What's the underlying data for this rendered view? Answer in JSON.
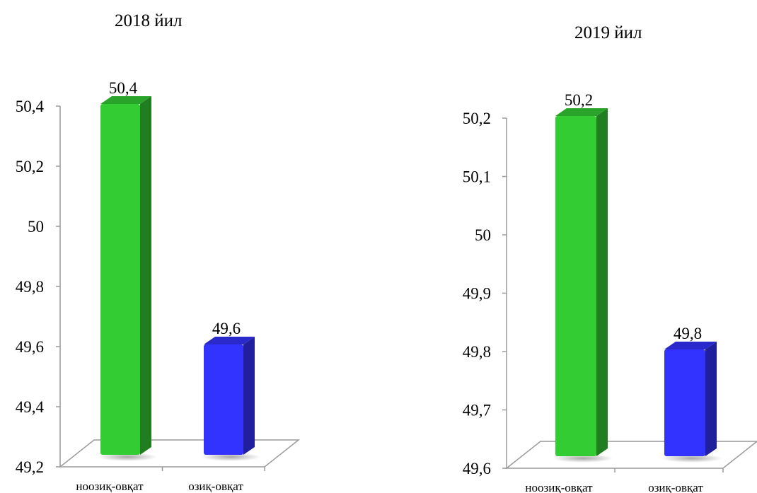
{
  "chart_data": [
    {
      "type": "bar",
      "title": "2018 йил",
      "categories": [
        "ноозиқ-овқат",
        "озиқ-овқат"
      ],
      "values": [
        50.4,
        49.6
      ],
      "data_labels": [
        "50,4",
        "49,6"
      ],
      "colors": [
        "#33cc33",
        "#3333ff"
      ],
      "ylim": [
        49.2,
        50.4
      ],
      "yticks": [
        49.2,
        49.4,
        49.6,
        49.8,
        50,
        50.2,
        50.4
      ],
      "ytick_labels": [
        "49,2",
        "49,4",
        "49,6",
        "49,8",
        "50",
        "50,2",
        "50,4"
      ],
      "grid": false,
      "legend": false
    },
    {
      "type": "bar",
      "title": "2019 йил",
      "categories": [
        "ноозиқ-овқат",
        "озиқ-овқат"
      ],
      "values": [
        50.2,
        49.8
      ],
      "data_labels": [
        "50,2",
        "49,8"
      ],
      "colors": [
        "#33cc33",
        "#3333ff"
      ],
      "ylim": [
        49.6,
        50.2
      ],
      "yticks": [
        49.6,
        49.7,
        49.8,
        49.9,
        50,
        50.1,
        50.2
      ],
      "ytick_labels": [
        "49,6",
        "49,7",
        "49,8",
        "49,9",
        "50",
        "50,1",
        "50,2"
      ],
      "grid": false,
      "legend": false
    }
  ]
}
